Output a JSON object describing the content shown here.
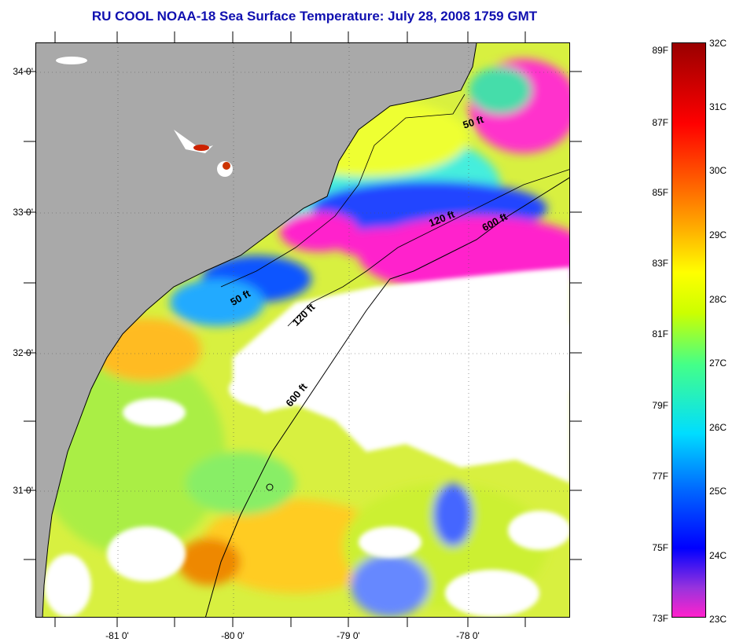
{
  "title": "RU COOL  NOAA-18  Sea Surface Temperature:  July 28, 2008 1759 GMT",
  "map": {
    "lat_labels": [
      "34 0'",
      "33 0'",
      "32 0'",
      "31 0'"
    ],
    "lon_labels": [
      "-81 0'",
      "-80 0'",
      "-79 0'",
      "-78 0'"
    ],
    "contour_labels": [
      "50 ft",
      "120 ft",
      "600 ft",
      "50 ft",
      "120 ft",
      "600 ft"
    ],
    "colors": {
      "land": "#a9a9a9",
      "cloud": "#ffffff",
      "warm": "#ffc800",
      "cool": "#ff2ad0"
    }
  },
  "colorbar": {
    "fahrenheit": [
      "89F",
      "87F",
      "85F",
      "83F",
      "81F",
      "79F",
      "77F",
      "75F",
      "73F"
    ],
    "celsius": [
      "32C",
      "31C",
      "30C",
      "29C",
      "28C",
      "27C",
      "26C",
      "25C",
      "24C",
      "23C"
    ]
  }
}
